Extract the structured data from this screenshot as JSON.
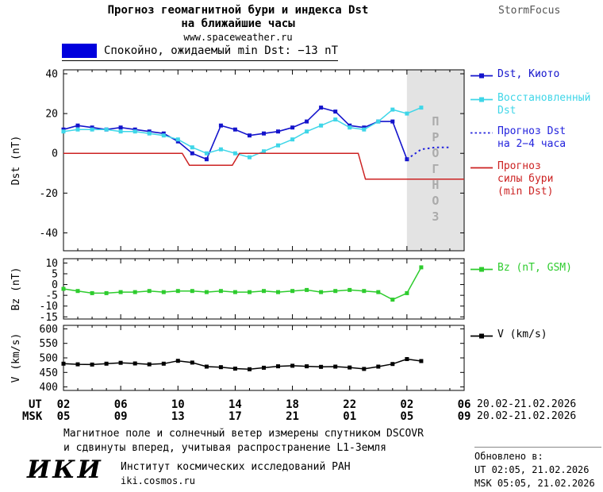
{
  "header": {
    "title_line1": "Прогноз геомагнитной бури и индекса Dst",
    "title_line2": "на ближайшие часы",
    "site": "www.spaceweather.ru",
    "brand": "StormFocus"
  },
  "status": {
    "label": "Спокойно, ожидаемый min Dst: −13 nT",
    "swatch_color": "#0000dd"
  },
  "xaxis": {
    "ut_label": "UT",
    "msk_label": "MSK",
    "ut_ticks": [
      "02",
      "06",
      "10",
      "14",
      "18",
      "22",
      "02",
      "06"
    ],
    "msk_ticks": [
      "05",
      "09",
      "13",
      "17",
      "21",
      "01",
      "05",
      "09"
    ],
    "ut_date_range": "20.02-21.02.2026",
    "msk_date_range": "20.02-21.02.2026"
  },
  "footer": {
    "note_line1": "Магнитное поле и солнечный ветер измерены спутником DSCOVR",
    "note_line2": "и сдвинуты вперед, учитывая распространение L1-Земля",
    "logo": "ИКИ",
    "institute": "Институт космических исследований РАН",
    "website": "iki.cosmos.ru"
  },
  "updated": {
    "label": "Обновлено в:",
    "ut": "UT  02:05, 21.02.2026",
    "msk": "MSK 05:05, 21.02.2026"
  },
  "chart_data": [
    {
      "type": "line",
      "name": "dst-panel",
      "ylabel": "Dst (nT)",
      "xlabel": "",
      "xlim": [
        2,
        30
      ],
      "ylim": [
        -49,
        42
      ],
      "pad_top": 4,
      "pad_bottom": 6,
      "yticks": [
        40,
        20,
        0,
        -20,
        -40
      ],
      "xticks": [
        2,
        6,
        10,
        14,
        18,
        22,
        26,
        30
      ],
      "grid": false,
      "legend_position": "right",
      "forecast_band": {
        "from": 26,
        "to": 30,
        "label": "ПРОГНОЗ"
      },
      "series": [
        {
          "name": "Dst Kyoto",
          "legend_label": "Dst, Киото",
          "color": "#1414cc",
          "marker": "square",
          "width": 1.6,
          "x": [
            2,
            3,
            4,
            5,
            6,
            7,
            8,
            9,
            10,
            11,
            12,
            13,
            14,
            15,
            16,
            17,
            18,
            19,
            20,
            21,
            22,
            23,
            24,
            25,
            26
          ],
          "values": [
            12,
            14,
            13,
            12,
            13,
            12,
            11,
            10,
            6,
            0,
            -3,
            14,
            12,
            9,
            10,
            11,
            13,
            16,
            23,
            21,
            14,
            13,
            16,
            16,
            -3
          ]
        },
        {
          "name": "Reconstructed Dst",
          "legend_label": "Восстановленный\nDst",
          "color": "#3fd6e8",
          "marker": "square",
          "width": 1.5,
          "x": [
            2,
            3,
            4,
            5,
            6,
            7,
            8,
            9,
            10,
            11,
            12,
            13,
            14,
            15,
            16,
            17,
            18,
            19,
            20,
            21,
            22,
            23,
            24,
            25,
            26,
            27
          ],
          "values": [
            11,
            12,
            12,
            12,
            11,
            11,
            10,
            9,
            7,
            3,
            0,
            2,
            0,
            -2,
            1,
            4,
            7,
            11,
            14,
            17,
            13,
            12,
            16,
            22,
            20,
            23
          ]
        },
        {
          "name": "Forecast Dst 2-4h",
          "legend_label": "Прогноз Dst\nна 2−4 часа",
          "color": "#2222dd",
          "style": "dotted",
          "width": 2,
          "x": [
            26,
            27,
            28,
            29
          ],
          "values": [
            -3,
            2,
            3,
            3
          ]
        },
        {
          "name": "Storm strength forecast",
          "legend_label": "Прогноз\nсилы бури\n(min Dst)",
          "color": "#cc2222",
          "width": 1.5,
          "x": [
            2,
            10.3,
            10.8,
            13.8,
            14.3,
            22.6,
            23.1,
            30
          ],
          "values": [
            0,
            0,
            -6,
            -6,
            0,
            0,
            -13,
            -13
          ]
        }
      ]
    },
    {
      "type": "line",
      "name": "bz-panel",
      "ylabel": "Bz (nT)",
      "xlabel": "",
      "xlim": [
        2,
        30
      ],
      "ylim": [
        -16,
        12
      ],
      "pad_top": 4,
      "pad_bottom": 4,
      "yticks": [
        10,
        5,
        0,
        -5,
        -10,
        -15
      ],
      "xticks": [
        2,
        6,
        10,
        14,
        18,
        22,
        26,
        30
      ],
      "grid": false,
      "legend_position": "right",
      "series": [
        {
          "name": "Bz GSM",
          "legend_label": "Bz (nT, GSM)",
          "color": "#2ecc2e",
          "marker": "square",
          "width": 1.5,
          "x": [
            2,
            3,
            4,
            5,
            6,
            7,
            8,
            9,
            10,
            11,
            12,
            13,
            14,
            15,
            16,
            17,
            18,
            19,
            20,
            21,
            22,
            23,
            24,
            25,
            26,
            27
          ],
          "values": [
            -2,
            -3,
            -4,
            -4,
            -3.5,
            -3.5,
            -3,
            -3.5,
            -3,
            -3,
            -3.5,
            -3,
            -3.5,
            -3.5,
            -3,
            -3.5,
            -3,
            -2.5,
            -3.5,
            -3,
            -2.5,
            -3,
            -3.5,
            -7,
            -4,
            8
          ]
        }
      ]
    },
    {
      "type": "line",
      "name": "v-panel",
      "ylabel": "V (km/s)",
      "xlabel": "",
      "xlim": [
        2,
        30
      ],
      "ylim": [
        388,
        612
      ],
      "pad_top": 2,
      "pad_bottom": 2,
      "yticks": [
        600,
        550,
        500,
        450,
        400
      ],
      "xticks": [
        2,
        6,
        10,
        14,
        18,
        22,
        26,
        30
      ],
      "grid": false,
      "legend_position": "right",
      "series": [
        {
          "name": "Solar wind speed",
          "legend_label": "V (km/s)",
          "color": "#000000",
          "marker": "square",
          "width": 1.5,
          "x": [
            2,
            3,
            4,
            5,
            6,
            7,
            8,
            9,
            10,
            11,
            12,
            13,
            14,
            15,
            16,
            17,
            18,
            19,
            20,
            21,
            22,
            23,
            24,
            25,
            26,
            27
          ],
          "values": [
            480,
            478,
            477,
            480,
            483,
            481,
            478,
            480,
            490,
            484,
            470,
            468,
            463,
            461,
            466,
            471,
            473,
            471,
            469,
            470,
            467,
            462,
            470,
            479,
            496,
            489
          ]
        }
      ]
    }
  ]
}
